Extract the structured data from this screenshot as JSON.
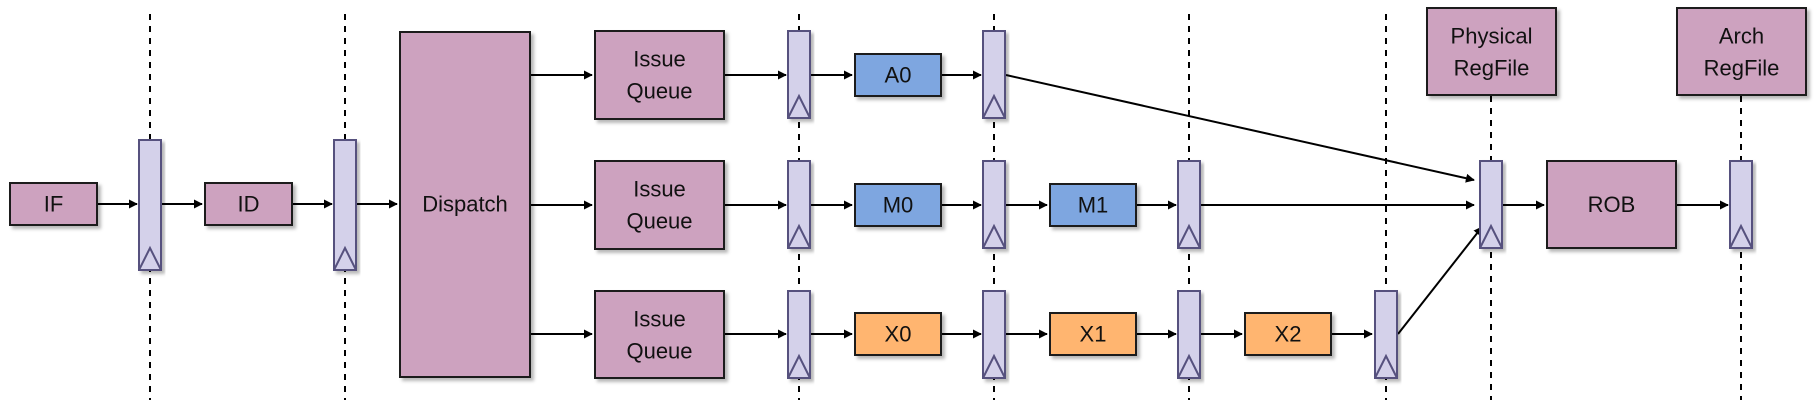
{
  "colors": {
    "stage": "#cda2bf",
    "alu": "#7ea6e0",
    "alu_text": "#1a2a4a",
    "mul": "#7ea6e0",
    "fp": "#ffb570",
    "latch": "#d4d1ea",
    "latch_stroke": "#56517e",
    "stroke": "#1a1a1a",
    "dash": "#000000"
  },
  "blocks": {
    "if": "IF",
    "id": "ID",
    "dispatch": "Dispatch",
    "iq_a_l1": "Issue",
    "iq_a_l2": "Queue",
    "iq_m_l1": "Issue",
    "iq_m_l2": "Queue",
    "iq_x_l1": "Issue",
    "iq_x_l2": "Queue",
    "a0": "A0",
    "m0": "M0",
    "m1": "M1",
    "x0": "X0",
    "x1": "X1",
    "x2": "X2",
    "prf_l1": "Physical",
    "prf_l2": "RegFile",
    "rob": "ROB",
    "arf_l1": "Arch",
    "arf_l2": "RegFile"
  }
}
